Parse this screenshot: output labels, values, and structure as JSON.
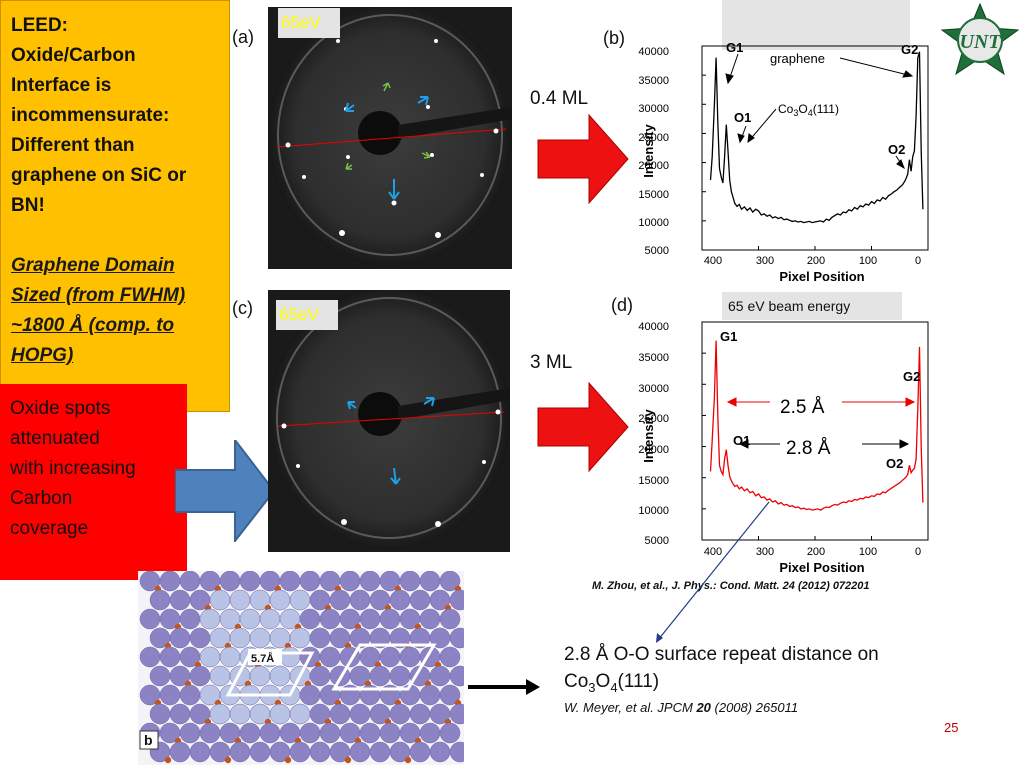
{
  "sidebar": {
    "heading_lines": [
      "LEED:",
      "Oxide/Carbon",
      "Interface is",
      "incommensurate:",
      "Different than",
      "graphene on SiC or",
      "BN!"
    ],
    "domain_lines": [
      "Graphene Domain",
      "Sized (from FWHM)",
      "~1800 Å (comp. to",
      "HOPG)"
    ],
    "note_lines": [
      "Oxide spots",
      "attenuated",
      "with increasing",
      "Carbon",
      "coverage"
    ]
  },
  "panels": {
    "a_label": "(a)",
    "a_energy": "65eV",
    "b_label": "(b)",
    "c_label": "(c)",
    "c_energy": "65eV",
    "d_label": "(d)",
    "d_title": "65 eV beam energy"
  },
  "arrows": {
    "top_coverage": "0.4 ML",
    "bottom_coverage": "3 ML"
  },
  "chart_data": [
    {
      "type": "line",
      "xlabel": "Pixel Position",
      "ylabel": "Intensity",
      "xlim": [
        400,
        0
      ],
      "ylim": [
        5000,
        40000
      ],
      "x_ticks": [
        "400",
        "300",
        "200",
        "100",
        "0"
      ],
      "y_ticks": [
        "40000",
        "35000",
        "30000",
        "25000",
        "20000",
        "15000",
        "10000",
        "5000"
      ],
      "annotations": [
        "G1",
        "G2",
        "O1",
        "O2",
        "graphene",
        "Co3O4(111)"
      ],
      "color": "#000000",
      "series": [
        {
          "x": [
            385,
            382,
            378,
            375,
            372,
            369,
            366,
            363,
            360,
            357,
            354,
            351,
            348,
            345,
            342,
            338,
            334,
            330,
            325,
            320,
            315,
            310,
            305,
            300,
            295,
            290,
            285,
            280,
            275,
            270,
            265,
            260,
            255,
            250,
            245,
            240,
            235,
            230,
            225,
            220,
            215,
            210,
            205,
            200,
            195,
            190,
            185,
            180,
            175,
            170,
            165,
            160,
            155,
            150,
            145,
            140,
            135,
            130,
            125,
            120,
            115,
            110,
            105,
            100,
            95,
            90,
            85,
            80,
            75,
            70,
            65,
            60,
            55,
            50,
            45,
            40,
            36,
            33,
            30,
            27,
            24,
            21,
            18,
            15,
            12,
            9
          ],
          "y": [
            17000,
            21000,
            30000,
            38000,
            27000,
            19000,
            17500,
            16500,
            21000,
            26500,
            22000,
            17000,
            15000,
            14000,
            13000,
            12500,
            12800,
            12000,
            12400,
            11800,
            12200,
            11500,
            12000,
            11700,
            11000,
            11200,
            10800,
            11000,
            10500,
            10700,
            10400,
            10600,
            10200,
            10300,
            10100,
            9900,
            10000,
            9800,
            9900,
            9700,
            9800,
            9900,
            9700,
            9800,
            9900,
            10000,
            9800,
            10300,
            10100,
            10600,
            10900,
            11200,
            11000,
            11500,
            11400,
            11900,
            11700,
            12300,
            12000,
            12600,
            12400,
            12900,
            12700,
            13300,
            13000,
            13600,
            13400,
            14000,
            13700,
            14300,
            14600,
            15000,
            15300,
            15800,
            16200,
            17000,
            18000,
            20500,
            18500,
            21000,
            22000,
            28000,
            38000,
            39000,
            22000,
            12000
          ]
        }
      ]
    },
    {
      "type": "line",
      "xlabel": "Pixel Position",
      "ylabel": "Intensity",
      "xlim": [
        400,
        0
      ],
      "ylim": [
        5000,
        40000
      ],
      "x_ticks": [
        "400",
        "300",
        "200",
        "100",
        "0"
      ],
      "y_ticks": [
        "40000",
        "35000",
        "30000",
        "25000",
        "20000",
        "15000",
        "10000",
        "5000"
      ],
      "annotations": [
        "G1",
        "G2",
        "O1",
        "O2",
        "2.5 Å",
        "2.8 Å"
      ],
      "color": "#ee0000",
      "series": [
        {
          "x": [
            385,
            382,
            378,
            375,
            372,
            369,
            366,
            363,
            360,
            357,
            354,
            351,
            348,
            345,
            342,
            338,
            334,
            330,
            325,
            320,
            315,
            310,
            305,
            300,
            295,
            290,
            285,
            280,
            275,
            270,
            265,
            260,
            255,
            250,
            245,
            240,
            235,
            230,
            225,
            220,
            215,
            210,
            205,
            200,
            195,
            190,
            185,
            180,
            175,
            170,
            165,
            160,
            155,
            150,
            145,
            140,
            135,
            130,
            125,
            120,
            115,
            110,
            105,
            100,
            95,
            90,
            85,
            80,
            75,
            70,
            65,
            60,
            55,
            50,
            45,
            40,
            36,
            33,
            30,
            27,
            24,
            21,
            18,
            15,
            12,
            9
          ],
          "y": [
            16000,
            21000,
            28000,
            37000,
            25000,
            17000,
            16000,
            15500,
            18000,
            19500,
            17000,
            15200,
            14500,
            14000,
            13600,
            13800,
            13200,
            13500,
            12900,
            13200,
            12600,
            12800,
            12100,
            12400,
            11800,
            11900,
            11400,
            11600,
            11100,
            11300,
            10800,
            11000,
            10600,
            10700,
            10400,
            10500,
            10200,
            10300,
            10000,
            10100,
            9900,
            10000,
            9800,
            9900,
            10000,
            9800,
            10100,
            10300,
            10200,
            10500,
            10700,
            10600,
            10900,
            11100,
            11000,
            11300,
            11200,
            11500,
            11400,
            11700,
            11600,
            11900,
            11800,
            12100,
            12000,
            12400,
            12300,
            12700,
            12600,
            13000,
            13300,
            13600,
            13900,
            14200,
            14600,
            15000,
            15500,
            17000,
            15800,
            16200,
            16500,
            18000,
            26000,
            36000,
            20000,
            11000
          ]
        }
      ]
    }
  ],
  "plot_b": {
    "ytick_labels": [
      "40000",
      "35000",
      "30000",
      "25000",
      "20000",
      "15000",
      "10000",
      "5000"
    ],
    "xtick_labels": [
      "400",
      "300",
      "200",
      "100",
      "0"
    ],
    "xlabel": "Pixel Position",
    "ylabel": "Intensity",
    "g1": "G1",
    "g2": "G2",
    "o1": "O1",
    "o2": "O2",
    "graphene": "graphene",
    "co_prefix": "Co",
    "co_sub1": "3",
    "co_mid": "O",
    "co_sub2": "4",
    "co_suffix": "(111)"
  },
  "plot_d": {
    "ytick_labels": [
      "40000",
      "35000",
      "30000",
      "25000",
      "20000",
      "15000",
      "10000",
      "5000"
    ],
    "xtick_labels": [
      "400",
      "300",
      "200",
      "100",
      "0"
    ],
    "xlabel": "Pixel Position",
    "ylabel": "Intensity",
    "g1": "G1",
    "g2": "G2",
    "o1": "O1",
    "o2": "O2",
    "dist1": "2.5 Å",
    "dist2": "2.8 Å"
  },
  "citation1": "M. Zhou, et al., J. Phys.: Cond. Matt. 24 (2012) 072201",
  "lattice": {
    "scale_label": "5.7Å",
    "panel_label": "b"
  },
  "bottom": {
    "line1": "2.8 Å O-O surface repeat distance on",
    "co": "Co",
    "sub1": "3",
    "o": "O",
    "sub2": "4",
    "suffix": "(111)",
    "cite_pre": "W. Meyer, et al. JPCM ",
    "cite_vol": "20",
    "cite_post": " (2008) 265011"
  },
  "logo": {
    "text": "UNT",
    "ring_text": "UNIVERSITY OF NORTH TEXAS"
  },
  "page_number": "25",
  "colors": {
    "sidebar_bg": "#ffc000",
    "note_bg": "#ff0000",
    "arrow_red": "#ee1111",
    "arrow_blue": "#4f81bd",
    "plot_d_line": "#ee0000",
    "unt_green": "#1f6f3a"
  }
}
